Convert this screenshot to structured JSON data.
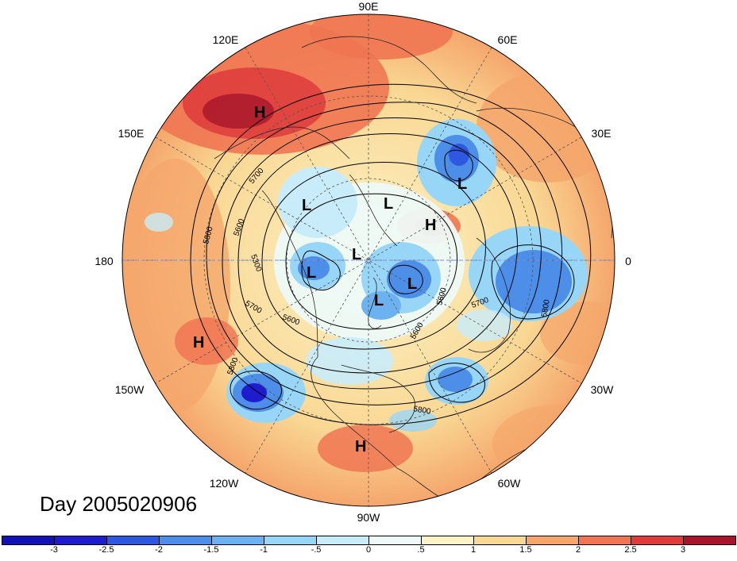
{
  "map": {
    "day_label": "Day 2005020906",
    "longitude_labels": [
      "90E",
      "60E",
      "30E",
      "0",
      "30W",
      "60W",
      "90W",
      "120W",
      "150W",
      "180",
      "150E",
      "120E"
    ],
    "pressure_centers": [
      {
        "type": "H",
        "lon": "120E-side",
        "id": "h1"
      },
      {
        "type": "L",
        "id": "l1"
      },
      {
        "type": "L",
        "id": "l2"
      },
      {
        "type": "H",
        "id": "h2"
      },
      {
        "type": "L",
        "id": "l3"
      },
      {
        "type": "L",
        "id": "l4"
      },
      {
        "type": "L",
        "id": "l5"
      },
      {
        "type": "L",
        "id": "l6"
      },
      {
        "type": "L",
        "id": "l7"
      },
      {
        "type": "H",
        "id": "h3"
      },
      {
        "type": "H",
        "id": "h4"
      }
    ],
    "contour_labels": [
      "5700",
      "5600",
      "5800",
      "5300",
      "5700",
      "5600",
      "5600",
      "5700",
      "5800",
      "5800",
      "5600",
      "5300",
      "5800"
    ]
  },
  "colorbar": {
    "tick_labels": [
      "-3",
      "-2.5",
      "-2",
      "-1.5",
      "-1",
      "-.5",
      "0",
      ".5",
      "1",
      "1.5",
      "2",
      "2.5",
      "3"
    ],
    "colors": [
      "#1e1ccc",
      "#2e58e0",
      "#4c8ee8",
      "#6cb2f0",
      "#98d6f8",
      "#c9ecfb",
      "#eefaf8",
      "#fdf3c7",
      "#f9d894",
      "#f5a66b",
      "#f07552",
      "#de3b3b",
      "#a6152a"
    ]
  }
}
